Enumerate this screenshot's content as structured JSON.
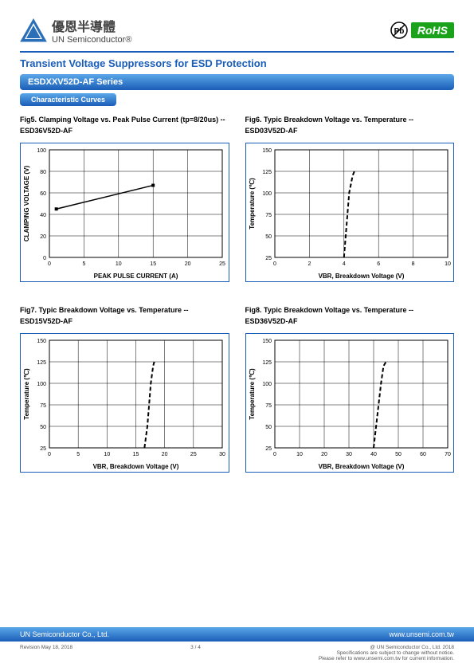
{
  "header": {
    "company_cn": "優恩半導體",
    "company_en": "UN Semiconductor®",
    "rohs_label": "RoHS"
  },
  "main_title": "Transient Voltage Suppressors for ESD Protection",
  "series_band": "ESDXXV52D-AF Series",
  "section_band": "Characteristic Curves",
  "charts": {
    "fig5": {
      "caption": "Fig5. Clamping Voltage vs. Peak Pulse Current (tp=8/20us) --ESD36V52D-AF",
      "type": "line",
      "xlabel": "PEAK PULSE CURRENT (A)",
      "ylabel": "CLAMPING VOLTAGE (V)",
      "xlim": [
        0,
        25
      ],
      "ylim": [
        0,
        100
      ],
      "xticks": [
        0,
        5,
        10,
        15,
        20,
        25
      ],
      "yticks": [
        0,
        20,
        40,
        60,
        80,
        100
      ],
      "line_color": "#000000",
      "line_width": 1.5,
      "line_style": "solid",
      "data": [
        [
          1,
          45
        ],
        [
          15,
          67
        ]
      ],
      "grid_color": "#000000",
      "background": "#ffffff",
      "axis_fontsize": 8,
      "tick_fontsize": 7
    },
    "fig6": {
      "caption": "Fig6. Typic Breakdown Voltage vs. Temperature --ESD03V52D-AF",
      "type": "line",
      "xlabel": "VBR, Breakdown Voltage (V)",
      "ylabel": "Temperature (℃)",
      "xlim": [
        0,
        10
      ],
      "ylim": [
        25,
        150
      ],
      "xticks": [
        0,
        2,
        4,
        6,
        8,
        10
      ],
      "yticks": [
        25,
        50,
        75,
        100,
        125,
        150
      ],
      "line_color": "#000000",
      "line_width": 2,
      "line_style": "dashed",
      "data": [
        [
          4.0,
          25
        ],
        [
          4.1,
          50
        ],
        [
          4.2,
          75
        ],
        [
          4.3,
          100
        ],
        [
          4.5,
          120
        ],
        [
          4.6,
          125
        ]
      ],
      "grid_color": "#000000",
      "background": "#ffffff",
      "axis_fontsize": 8,
      "tick_fontsize": 7
    },
    "fig7": {
      "caption": "Fig7. Typic Breakdown Voltage vs. Temperature --ESD15V52D-AF",
      "type": "line",
      "xlabel": "VBR, Breakdown Voltage (V)",
      "ylabel": "Temperature (℃)",
      "xlim": [
        0,
        30
      ],
      "ylim": [
        25,
        150
      ],
      "xticks": [
        0,
        5,
        10,
        15,
        20,
        25,
        30
      ],
      "yticks": [
        25,
        50,
        75,
        100,
        125,
        150
      ],
      "line_color": "#000000",
      "line_width": 2,
      "line_style": "dashed",
      "data": [
        [
          16.5,
          25
        ],
        [
          17.0,
          50
        ],
        [
          17.3,
          75
        ],
        [
          17.6,
          100
        ],
        [
          18.0,
          120
        ],
        [
          18.2,
          125
        ]
      ],
      "grid_color": "#000000",
      "background": "#ffffff",
      "axis_fontsize": 8,
      "tick_fontsize": 7
    },
    "fig8": {
      "caption": "Fig8. Typic Breakdown Voltage vs. Temperature --ESD36V52D-AF",
      "type": "line",
      "xlabel": "VBR, Breakdown Voltage (V)",
      "ylabel": "Temperature (℃)",
      "xlim": [
        0,
        70
      ],
      "ylim": [
        25,
        150
      ],
      "xticks": [
        0,
        10,
        20,
        30,
        40,
        50,
        60,
        70
      ],
      "yticks": [
        25,
        50,
        75,
        100,
        125,
        150
      ],
      "line_color": "#000000",
      "line_width": 2,
      "line_style": "dashed",
      "data": [
        [
          40,
          25
        ],
        [
          41,
          50
        ],
        [
          42,
          75
        ],
        [
          43,
          100
        ],
        [
          44,
          120
        ],
        [
          45,
          125
        ]
      ],
      "grid_color": "#000000",
      "background": "#ffffff",
      "axis_fontsize": 8,
      "tick_fontsize": 7
    }
  },
  "footer": {
    "company": "UN Semiconductor Co., Ltd.",
    "url": "www.unsemi.com.tw",
    "revision": "Revision May 18, 2018",
    "page": "3 / 4",
    "copyright": "@ UN Semiconductor Co., Ltd.    2018",
    "note1": "Specifications are subject to change without notice.",
    "note2": "Please refer to www.unsemi.com.tw for current information."
  }
}
